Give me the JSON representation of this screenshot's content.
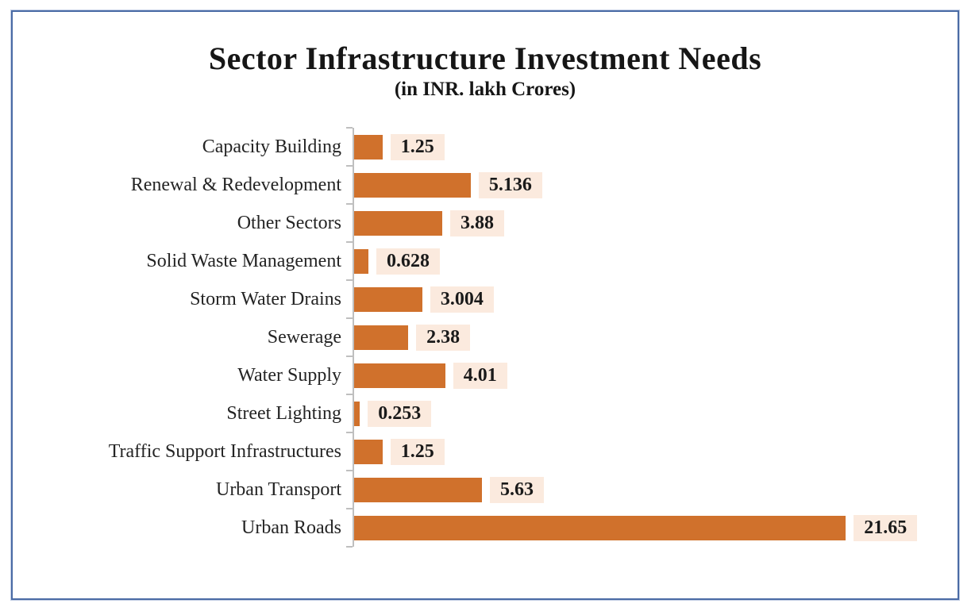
{
  "chart_data": {
    "type": "bar",
    "orientation": "horizontal",
    "title": "Sector Infrastructure Investment Needs",
    "subtitle": "(in INR. lakh Crores)",
    "categories": [
      "Capacity Building",
      "Renewal & Redevelopment",
      "Other Sectors",
      "Solid Waste Management",
      "Storm Water Drains",
      "Sewerage",
      "Water Supply",
      "Street Lighting",
      "Traffic Support Infrastructures",
      "Urban Transport",
      "Urban Roads"
    ],
    "values": [
      1.25,
      5.136,
      3.88,
      0.628,
      3.004,
      2.38,
      4.01,
      0.253,
      1.25,
      5.63,
      21.65
    ],
    "value_labels": [
      "1.25",
      "5.136",
      "3.88",
      "0.628",
      "3.004",
      "2.38",
      "4.01",
      "0.253",
      "1.25",
      "5.63",
      "21.65"
    ],
    "xlim": [
      0,
      25.8
    ],
    "grid": false,
    "legend": false,
    "colors": {
      "bar_color": "#D0712C",
      "value_label_background": "#FBEADE",
      "axis_color": "#BFBFBF",
      "frame_border": "#4A6BA5",
      "text_color": "#1a1a1a"
    }
  }
}
